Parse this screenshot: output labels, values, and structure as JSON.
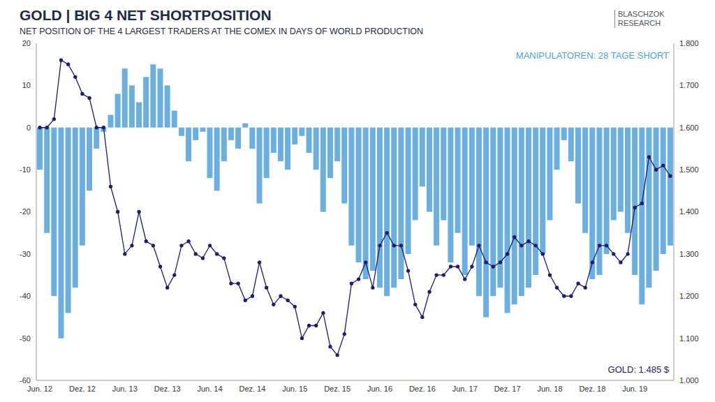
{
  "chart_data": {
    "type": "bar",
    "title": "GOLD | BIG 4 NET SHORTPOSITION",
    "subtitle": "NET POSITION OF THE 4 LARGEST TRADERS AT THE COMEX IN DAYS OF WORLD PRODUCTION",
    "logo_lines": [
      "BLASCHZOK",
      "RESEARCH"
    ],
    "annotations": [
      "MANIPULATOREN: 28 TAGE SHORT",
      "GOLD: 1.485 $"
    ],
    "categories": [
      "Jun. 12",
      null,
      null,
      null,
      null,
      null,
      "Dez. 12",
      null,
      null,
      null,
      null,
      null,
      "Jun. 13",
      null,
      null,
      null,
      null,
      null,
      "Dez. 13",
      null,
      null,
      null,
      null,
      null,
      "Jun. 14",
      null,
      null,
      null,
      null,
      null,
      "Dez. 14",
      null,
      null,
      null,
      null,
      null,
      "Jun. 15",
      null,
      null,
      null,
      null,
      null,
      "Dez. 15",
      null,
      null,
      null,
      null,
      null,
      "Jun. 16",
      null,
      null,
      null,
      null,
      null,
      "Dez. 16",
      null,
      null,
      null,
      null,
      null,
      "Jun. 17",
      null,
      null,
      null,
      null,
      null,
      "Dez. 17",
      null,
      null,
      null,
      null,
      null,
      "Jun. 18",
      null,
      null,
      null,
      null,
      null,
      "Dez. 18",
      null,
      null,
      null,
      null,
      null,
      "Jun. 19",
      null,
      null,
      null,
      null,
      null
    ],
    "series": [
      {
        "type": "bar",
        "color": "#6aafe0",
        "values": [
          -10,
          -25,
          -40,
          -50,
          -44,
          -38,
          -28,
          -15,
          -5,
          -1,
          3,
          8,
          14,
          10,
          6,
          12,
          15,
          14,
          10,
          4,
          -2,
          -8,
          -3,
          -1,
          -12,
          -15,
          -8,
          -3,
          -5,
          1,
          -5,
          -18,
          -12,
          -6,
          -8,
          -10,
          -4,
          -2,
          -6,
          -10,
          -20,
          -12,
          -8,
          -18,
          -28,
          -32,
          -36,
          -34,
          -38,
          -40,
          -38,
          -36,
          -30,
          -22,
          -14,
          -20,
          -28,
          -22,
          -32,
          -25,
          -35,
          -28,
          -40,
          -45,
          -40,
          -38,
          -44,
          -42,
          -40,
          -38,
          -35,
          -30,
          -22,
          -10,
          -3,
          -8,
          -18,
          -25,
          -36,
          -35,
          -30,
          -22,
          -20,
          -25,
          -35,
          -42,
          -38,
          -34,
          -30,
          -28
        ]
      },
      {
        "type": "line",
        "axis": "y2",
        "color": "#1c1c72",
        "marker": "circle",
        "values": [
          1600,
          1600,
          1620,
          1760,
          1750,
          1720,
          1680,
          1670,
          1600,
          1600,
          1460,
          1400,
          1300,
          1320,
          1400,
          1330,
          1320,
          1270,
          1220,
          1250,
          1320,
          1330,
          1300,
          1290,
          1320,
          1300,
          1290,
          1230,
          1230,
          1190,
          1200,
          1280,
          1220,
          1180,
          1200,
          1190,
          1175,
          1100,
          1130,
          1130,
          1160,
          1080,
          1060,
          1110,
          1230,
          1240,
          1280,
          1220,
          1320,
          1350,
          1320,
          1320,
          1260,
          1180,
          1150,
          1210,
          1250,
          1250,
          1270,
          1270,
          1240,
          1270,
          1320,
          1280,
          1270,
          1280,
          1300,
          1340,
          1320,
          1330,
          1320,
          1300,
          1250,
          1220,
          1200,
          1200,
          1230,
          1220,
          1280,
          1320,
          1320,
          1300,
          1280,
          1300,
          1410,
          1420,
          1530,
          1500,
          1510,
          1485
        ]
      }
    ],
    "ylim": [
      -60,
      20
    ],
    "yticks": [
      -60,
      -50,
      -40,
      -30,
      -20,
      -10,
      0,
      10,
      20
    ],
    "y2lim": [
      1000,
      1800
    ],
    "y2ticks": [
      {
        "value": 1000,
        "label": "1.000"
      },
      {
        "value": 1100,
        "label": "1.100"
      },
      {
        "value": 1200,
        "label": "1.200"
      },
      {
        "value": 1300,
        "label": "1.300"
      },
      {
        "value": 1400,
        "label": "1.400"
      },
      {
        "value": 1500,
        "label": "1.500"
      },
      {
        "value": 1600,
        "label": "1.600"
      },
      {
        "value": 1700,
        "label": "1.700"
      },
      {
        "value": 1800,
        "label": "1.800"
      }
    ],
    "grid": false
  }
}
